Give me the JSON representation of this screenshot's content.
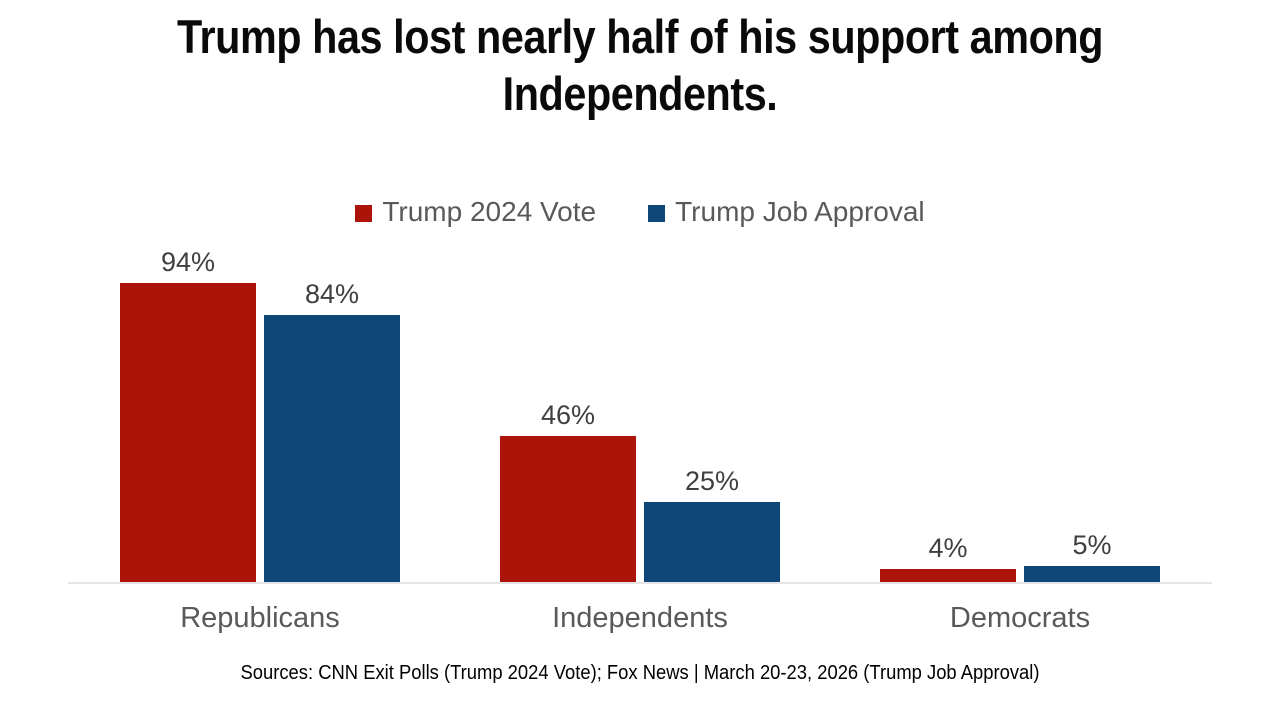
{
  "chart_data": {
    "type": "bar",
    "title": "Trump has lost nearly half of his support among Independents.",
    "title_lines": [
      "Trump has lost nearly half of his support among",
      "Independents."
    ],
    "categories": [
      "Republicans",
      "Independents",
      "Democrats"
    ],
    "series": [
      {
        "name": "Trump 2024 Vote",
        "color": "#AC1409",
        "values": [
          94,
          46,
          4
        ]
      },
      {
        "name": "Trump Job Approval",
        "color": "#0E4678",
        "values": [
          84,
          25,
          5
        ]
      }
    ],
    "value_suffix": "%",
    "ylim": [
      0,
      100
    ],
    "grid": false,
    "legend_position": "top",
    "axis_line_color": "#e4e4e4",
    "label_color": "#3f3f3f",
    "category_label_color": "#595959",
    "source_note": "Sources: CNN Exit Polls (Trump 2024 Vote); Fox News | March 20-23, 2026 (Trump Job Approval)"
  }
}
